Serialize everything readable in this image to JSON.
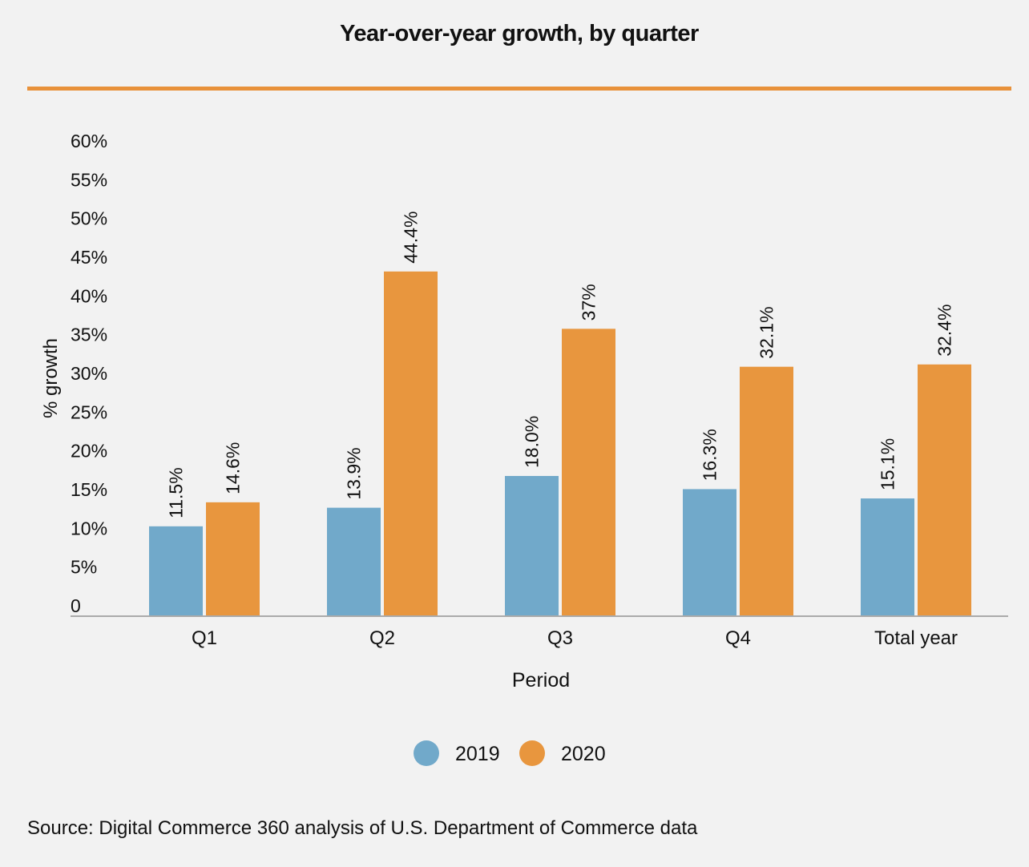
{
  "header": {
    "title": "Year-over-year growth, by quarter"
  },
  "colors": {
    "accent_rule": "#e8913a",
    "series_2019": "#71a9ca",
    "series_2020": "#e8963e",
    "axis": "#aaaaaa",
    "background": "#f2f2f2"
  },
  "chart_data": {
    "type": "bar",
    "title": "Year-over-year growth, by quarter",
    "xlabel": "Period",
    "ylabel": "% growth",
    "categories": [
      "Q1",
      "Q2",
      "Q3",
      "Q4",
      "Total year"
    ],
    "series": [
      {
        "name": "2019",
        "values": [
          11.5,
          13.9,
          18.0,
          16.3,
          15.1
        ],
        "labels": [
          "11.5%",
          "13.9%",
          "18.0%",
          "16.3%",
          "15.1%"
        ]
      },
      {
        "name": "2020",
        "values": [
          14.6,
          44.4,
          37,
          32.1,
          32.4
        ],
        "labels": [
          "14.6%",
          "44.4%",
          "37%",
          "32.1%",
          "32.4%"
        ]
      }
    ],
    "ylim": [
      0,
      60
    ],
    "yticks": [
      0,
      5,
      10,
      15,
      20,
      25,
      30,
      35,
      40,
      45,
      50,
      55,
      60
    ],
    "ytick_labels": [
      "0",
      "5%",
      "10%",
      "15%",
      "20%",
      "25%",
      "30%",
      "35%",
      "40%",
      "45%",
      "50%",
      "55%",
      "60%"
    ],
    "grid": false,
    "legend_position": "bottom-center"
  },
  "footer": {
    "source": "Source: Digital Commerce 360 analysis of U.S. Department of Commerce data"
  }
}
